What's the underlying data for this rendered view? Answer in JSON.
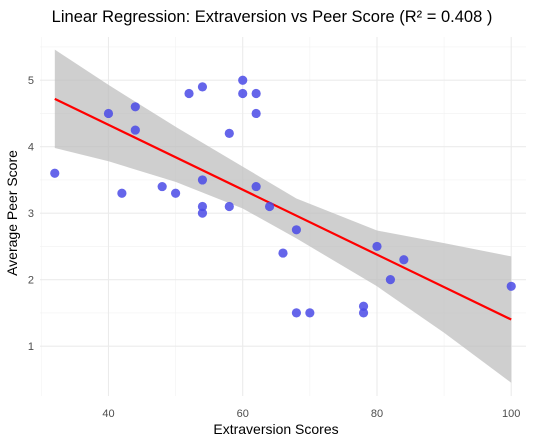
{
  "chart_data": {
    "type": "scatter",
    "title": "Linear Regression: Extraversion vs Peer Score (R² = 0.408 )",
    "xlabel": "Extraversion Scores",
    "ylabel": "Average Peer Score",
    "xlim": [
      29.8,
      102.2
    ],
    "ylim": [
      0.25,
      5.65
    ],
    "x_ticks": [
      40,
      60,
      80,
      100
    ],
    "y_ticks": [
      1,
      2,
      3,
      4,
      5
    ],
    "x_minor_ticks": [
      30,
      50,
      70,
      90
    ],
    "y_minor_ticks": [
      1.5,
      2.5,
      3.5,
      4.5,
      5.5
    ],
    "grid": true,
    "point_color": "#4a4ae6",
    "line_color": "#ff0000",
    "band_color": "#bdbdbd",
    "points": [
      {
        "x": 32,
        "y": 3.6
      },
      {
        "x": 40,
        "y": 4.5
      },
      {
        "x": 42,
        "y": 3.3
      },
      {
        "x": 44,
        "y": 4.6
      },
      {
        "x": 44,
        "y": 4.25
      },
      {
        "x": 48,
        "y": 3.4
      },
      {
        "x": 50,
        "y": 3.3
      },
      {
        "x": 52,
        "y": 4.8
      },
      {
        "x": 54,
        "y": 4.9
      },
      {
        "x": 54,
        "y": 3.5
      },
      {
        "x": 54,
        "y": 3.1
      },
      {
        "x": 54,
        "y": 3.0
      },
      {
        "x": 58,
        "y": 4.2
      },
      {
        "x": 58,
        "y": 3.1
      },
      {
        "x": 60,
        "y": 5.0
      },
      {
        "x": 60,
        "y": 4.8
      },
      {
        "x": 62,
        "y": 4.8
      },
      {
        "x": 62,
        "y": 4.5
      },
      {
        "x": 62,
        "y": 3.4
      },
      {
        "x": 64,
        "y": 3.1
      },
      {
        "x": 66,
        "y": 2.4
      },
      {
        "x": 68,
        "y": 2.75
      },
      {
        "x": 68,
        "y": 1.5
      },
      {
        "x": 70,
        "y": 1.5
      },
      {
        "x": 78,
        "y": 1.6
      },
      {
        "x": 78,
        "y": 1.5
      },
      {
        "x": 80,
        "y": 2.5
      },
      {
        "x": 82,
        "y": 2.0
      },
      {
        "x": 84,
        "y": 2.3
      },
      {
        "x": 100,
        "y": 1.9
      }
    ],
    "regression": {
      "x": [
        32,
        100
      ],
      "y": [
        4.72,
        1.4
      ]
    },
    "confidence_band": {
      "x": [
        32,
        40,
        50,
        60,
        68,
        80,
        90,
        100
      ],
      "lower": [
        3.98,
        3.78,
        3.47,
        3.07,
        2.62,
        1.9,
        1.2,
        0.45
      ],
      "upper": [
        5.46,
        4.93,
        4.3,
        3.7,
        3.22,
        2.74,
        2.55,
        2.35
      ]
    }
  }
}
